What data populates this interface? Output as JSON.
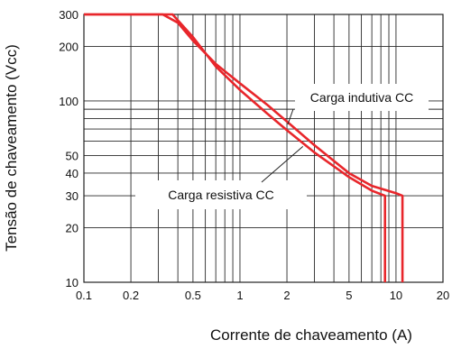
{
  "chart_data": {
    "type": "line",
    "x_scale": "log",
    "y_scale": "log",
    "xlim": [
      0.1,
      20
    ],
    "ylim": [
      10,
      300
    ],
    "xlabel": "Corrente de chaveamento (A)",
    "ylabel": "Tensão de chaveamento (Vcc)",
    "x_tick_labels": [
      "0.1",
      "0.2",
      "0.5",
      "1",
      "2",
      "5",
      "10",
      "20"
    ],
    "x_tick_values": [
      0.1,
      0.2,
      0.5,
      1,
      2,
      5,
      10,
      20
    ],
    "y_tick_labels": [
      "10",
      "20",
      "30",
      "40",
      "50",
      "100",
      "200",
      "300"
    ],
    "y_tick_values": [
      10,
      20,
      30,
      40,
      50,
      100,
      200,
      300
    ],
    "grid": true,
    "series": [
      {
        "name": "Carga indutiva CC",
        "color": "#e8262b",
        "points": [
          [
            0.1,
            300
          ],
          [
            0.32,
            300
          ],
          [
            0.4,
            270
          ],
          [
            0.5,
            215
          ],
          [
            0.7,
            160
          ],
          [
            1,
            125
          ],
          [
            1.5,
            95
          ],
          [
            2,
            77
          ],
          [
            3,
            57
          ],
          [
            5,
            40
          ],
          [
            7,
            34
          ],
          [
            10,
            31
          ],
          [
            11,
            30
          ],
          [
            11,
            10
          ]
        ]
      },
      {
        "name": "Carga resistiva CC",
        "color": "#e8262b",
        "points": [
          [
            0.1,
            300
          ],
          [
            0.37,
            300
          ],
          [
            0.5,
            225
          ],
          [
            0.7,
            155
          ],
          [
            1,
            115
          ],
          [
            1.5,
            85
          ],
          [
            2,
            69
          ],
          [
            3,
            52
          ],
          [
            5,
            38
          ],
          [
            7,
            32
          ],
          [
            8.5,
            30
          ],
          [
            8.5,
            10
          ]
        ]
      }
    ],
    "annotations": [
      {
        "text": "Carga indutiva CC",
        "target_series": "Carga indutiva CC"
      },
      {
        "text": "Carga resistiva CC",
        "target_series": "Carga resistiva CC"
      }
    ]
  }
}
